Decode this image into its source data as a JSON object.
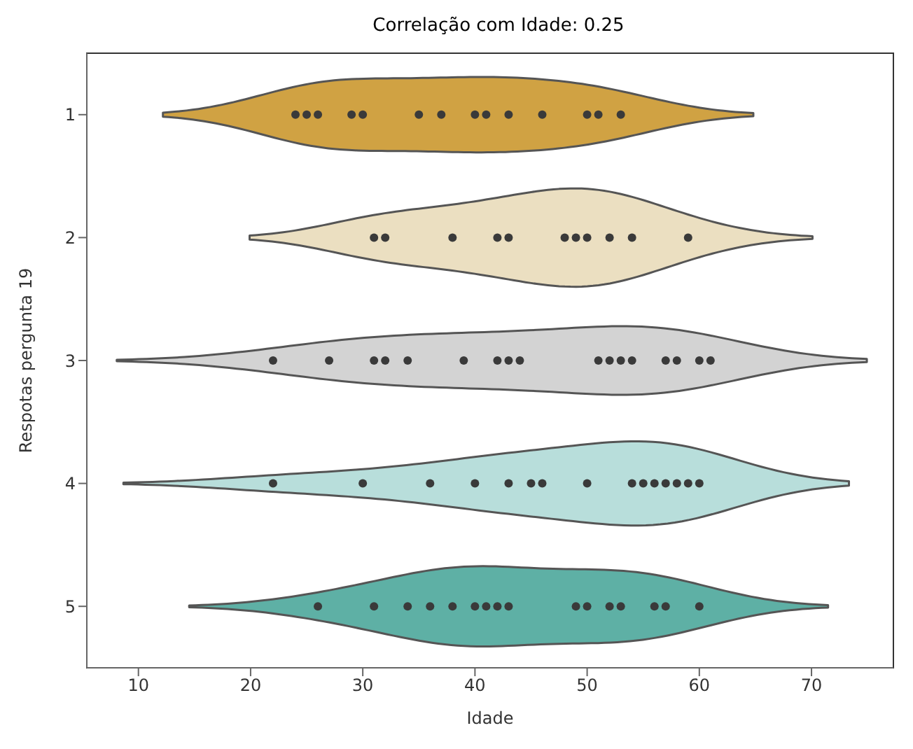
{
  "chart_data": {
    "type": "scatter",
    "orientation": "horizontal",
    "title": "Correlação com Idade: 0.25",
    "xlabel": "Idade",
    "ylabel": "Respotas pergunta 19",
    "categories": [
      "1",
      "2",
      "3",
      "4",
      "5"
    ],
    "xlim": [
      5.4,
      77.3
    ],
    "xticks": [
      10,
      20,
      30,
      40,
      50,
      60,
      70
    ],
    "marker": "circle",
    "colors": [
      "#d0a243",
      "#ebdfc1",
      "#d3d3d3",
      "#b8dedb",
      "#5eb0a5"
    ],
    "series": [
      {
        "color": "#3a3a3a",
        "x": [
          "1",
          "1",
          "1",
          "1",
          "1",
          "1",
          "1",
          "1",
          "1",
          "1",
          "1",
          "1",
          "1",
          "1"
        ],
        "values": [
          24,
          25,
          26,
          29,
          30,
          35,
          37,
          40,
          41,
          43,
          46,
          50,
          51,
          53
        ]
      },
      {
        "color": "#3a3a3a",
        "x": [
          "2",
          "2",
          "2",
          "2",
          "2",
          "2",
          "2",
          "2",
          "2",
          "2",
          "2"
        ],
        "values": [
          31,
          32,
          38,
          42,
          43,
          48,
          49,
          50,
          52,
          54,
          59
        ]
      },
      {
        "color": "#3a3a3a",
        "x": [
          "3",
          "3",
          "3",
          "3",
          "3",
          "3",
          "3",
          "3",
          "3",
          "3",
          "3",
          "3",
          "3",
          "3",
          "3",
          "3",
          "3"
        ],
        "values": [
          22,
          27,
          31,
          32,
          34,
          39,
          42,
          43,
          44,
          51,
          52,
          53,
          54,
          57,
          58,
          60,
          61
        ]
      },
      {
        "color": "#3a3a3a",
        "x": [
          "4",
          "4",
          "4",
          "4",
          "4",
          "4",
          "4",
          "4",
          "4",
          "4",
          "4",
          "4",
          "4",
          "4",
          "4"
        ],
        "values": [
          22,
          30,
          36,
          40,
          43,
          45,
          46,
          50,
          54,
          55,
          56,
          57,
          58,
          59,
          60
        ]
      },
      {
        "color": "#3a3a3a",
        "x": [
          "5",
          "5",
          "5",
          "5",
          "5",
          "5",
          "5",
          "5",
          "5",
          "5",
          "5",
          "5",
          "5",
          "5",
          "5",
          "5"
        ],
        "values": [
          26,
          31,
          34,
          36,
          38,
          40,
          41,
          42,
          43,
          49,
          50,
          52,
          53,
          56,
          57,
          60
        ]
      }
    ]
  }
}
